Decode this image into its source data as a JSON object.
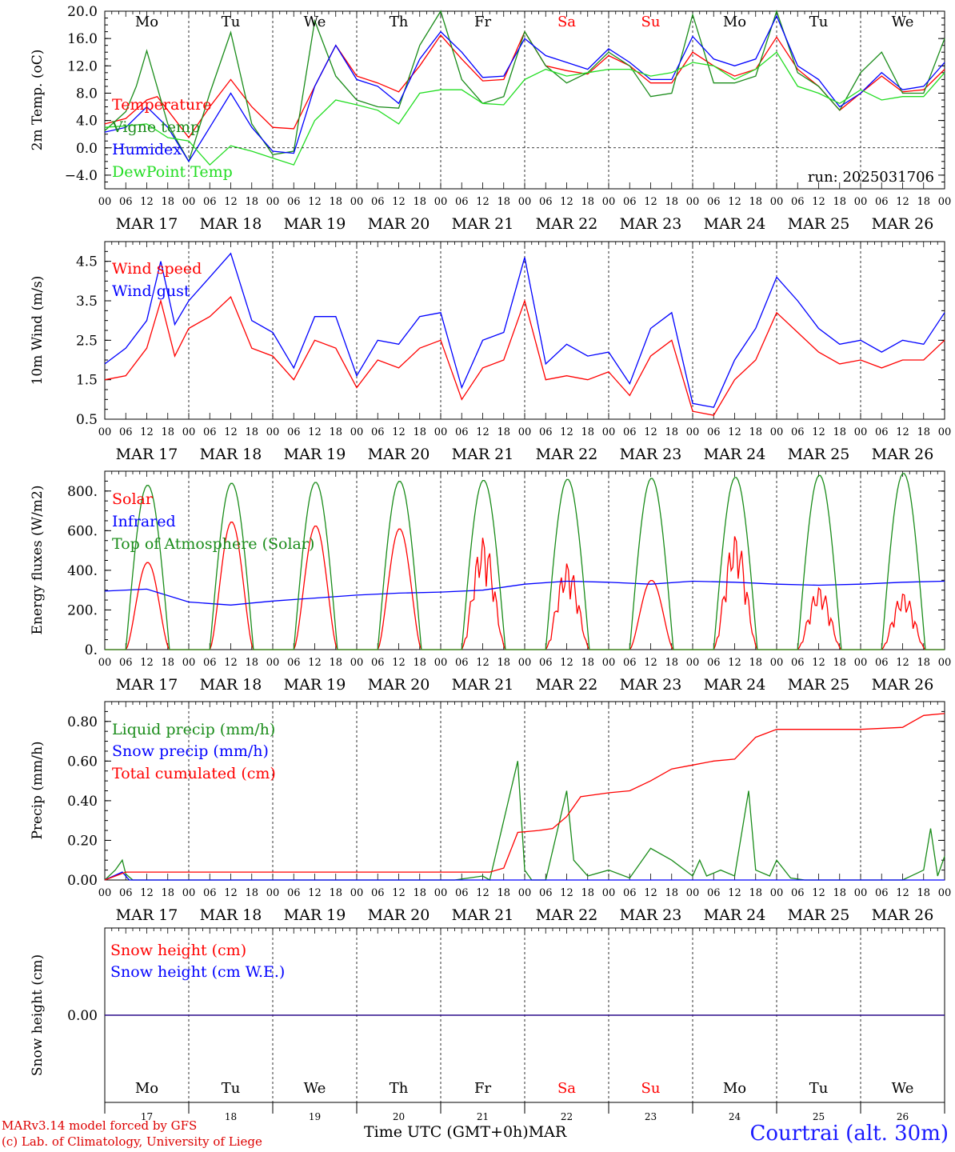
{
  "run_label": "run: 2025031706",
  "footer": {
    "model": "MARv3.14 model forced by GFS",
    "credit": "(c) Lab. of Climatology, University of Liege",
    "xlabel": "Time UTC (GMT+0h)",
    "month": "MAR",
    "station": "Courtrai (alt. 30m)"
  },
  "days": [
    {
      "abbr": "Mo",
      "date": "MAR 17",
      "num": "17",
      "weekend": false
    },
    {
      "abbr": "Tu",
      "date": "MAR 18",
      "num": "18",
      "weekend": false
    },
    {
      "abbr": "We",
      "date": "MAR 19",
      "num": "19",
      "weekend": false
    },
    {
      "abbr": "Th",
      "date": "MAR 20",
      "num": "20",
      "weekend": false
    },
    {
      "abbr": "Fr",
      "date": "MAR 21",
      "num": "21",
      "weekend": false
    },
    {
      "abbr": "Sa",
      "date": "MAR 22",
      "num": "22",
      "weekend": true
    },
    {
      "abbr": "Su",
      "date": "MAR 23",
      "num": "23",
      "weekend": true
    },
    {
      "abbr": "Mo",
      "date": "MAR 24",
      "num": "24",
      "weekend": false
    },
    {
      "abbr": "Tu",
      "date": "MAR 25",
      "num": "25",
      "weekend": false
    },
    {
      "abbr": "We",
      "date": "MAR 26",
      "num": "26",
      "weekend": false
    }
  ],
  "hour_ticks": [
    "00",
    "06",
    "12",
    "18"
  ],
  "colors": {
    "red": "#ff0000",
    "green": "#1a8c1a",
    "blue": "#0000ff",
    "lime": "#22dd22",
    "weekend": "#ff0000"
  },
  "chart_data": [
    {
      "id": "temperature",
      "type": "line",
      "ylabel": "2m Temp. (oC)",
      "ylim": [
        -6,
        20
      ],
      "yticks": [
        "20.0",
        "16.0",
        "12.0",
        "8.0",
        "4.0",
        "0.0",
        "−4.0"
      ],
      "ytick_values": [
        20,
        16,
        12,
        8,
        4,
        0,
        -4
      ],
      "x_unit": "hours since MAR 17 00 UTC",
      "series": [
        {
          "name": "Temperature",
          "color": "red",
          "x": [
            0,
            6,
            12,
            15,
            18,
            24,
            30,
            36,
            42,
            48,
            54,
            60,
            66,
            72,
            78,
            84,
            90,
            96,
            102,
            108,
            114,
            120,
            126,
            132,
            138,
            144,
            150,
            156,
            162,
            168,
            174,
            180,
            186,
            192,
            198,
            204,
            210,
            216,
            222,
            228,
            234,
            240
          ],
          "values": [
            3.5,
            4.3,
            7,
            7.5,
            5.5,
            1.5,
            6,
            10,
            6,
            3,
            2.8,
            9,
            15,
            10.5,
            9.5,
            8.2,
            12,
            16.5,
            13,
            9.8,
            10,
            17,
            12,
            11.3,
            10.8,
            13.5,
            12,
            9.5,
            9.5,
            14,
            12,
            10.5,
            11.5,
            16.2,
            11.5,
            9,
            5.5,
            8,
            10.5,
            8.2,
            8.5,
            11.5
          ]
        },
        {
          "name": "Vigne temp",
          "color": "green",
          "x": [
            0,
            6,
            9,
            12,
            18,
            24,
            30,
            36,
            42,
            48,
            54,
            60,
            66,
            72,
            78,
            84,
            90,
            96,
            102,
            108,
            114,
            120,
            126,
            132,
            138,
            144,
            150,
            156,
            162,
            168,
            174,
            180,
            186,
            192,
            198,
            204,
            210,
            216,
            222,
            228,
            234,
            240
          ],
          "values": [
            2.5,
            5.3,
            9,
            14.2,
            3.5,
            -2,
            8,
            16.9,
            3.5,
            -1,
            -0.5,
            18.6,
            10.5,
            7,
            6,
            5.8,
            15,
            20,
            10,
            6.5,
            7.5,
            17,
            12,
            9.5,
            11,
            14,
            12,
            7.5,
            8,
            19.5,
            9.5,
            9.5,
            10.5,
            20,
            11,
            9,
            5.5,
            11,
            14,
            8,
            8,
            16
          ]
        },
        {
          "name": "Humidex",
          "color": "blue",
          "x": [
            0,
            6,
            12,
            18,
            24,
            30,
            36,
            42,
            48,
            54,
            60,
            66,
            72,
            78,
            84,
            90,
            96,
            102,
            108,
            114,
            120,
            126,
            132,
            138,
            144,
            150,
            156,
            162,
            168,
            174,
            180,
            186,
            192,
            198,
            204,
            210,
            216,
            222,
            228,
            234,
            240
          ],
          "values": [
            2.3,
            3,
            6,
            3,
            -2,
            3,
            8,
            3,
            -0.5,
            -0.8,
            9,
            15,
            10,
            9,
            6.5,
            13,
            17,
            14,
            10.3,
            10.5,
            16,
            13.5,
            12.5,
            11.5,
            14.5,
            12.5,
            10,
            10,
            16.3,
            13,
            12,
            13,
            19.3,
            12,
            10,
            6,
            8,
            11,
            8.5,
            9,
            12.5
          ]
        },
        {
          "name": "DewPoint Temp",
          "color": "lime",
          "x": [
            0,
            6,
            12,
            18,
            24,
            30,
            36,
            42,
            48,
            54,
            60,
            66,
            72,
            78,
            84,
            90,
            96,
            102,
            108,
            114,
            120,
            126,
            132,
            138,
            144,
            150,
            156,
            162,
            168,
            174,
            180,
            186,
            192,
            198,
            204,
            210,
            216,
            222,
            228,
            234,
            240
          ],
          "values": [
            3,
            3.2,
            3.5,
            1.5,
            1,
            -2.5,
            0.3,
            -0.5,
            -1.5,
            -2.5,
            4,
            7,
            6.3,
            5.5,
            3.5,
            8,
            8.5,
            8.5,
            6.5,
            6.3,
            10,
            11.5,
            10.5,
            11,
            11.5,
            11.5,
            10.5,
            11,
            12.5,
            12,
            10,
            11.5,
            14,
            9,
            8,
            6.5,
            8.5,
            7,
            7.5,
            7.5,
            11
          ]
        }
      ]
    },
    {
      "id": "wind",
      "type": "line",
      "ylabel": "10m Wind (m/s)",
      "ylim": [
        0.5,
        5
      ],
      "yticks": [
        "4.5",
        "3.5",
        "2.5",
        "1.5",
        "0.5"
      ],
      "ytick_values": [
        4.5,
        3.5,
        2.5,
        1.5,
        0.5
      ],
      "series": [
        {
          "name": "Wind speed",
          "color": "red",
          "x": [
            0,
            6,
            12,
            16,
            20,
            24,
            30,
            36,
            42,
            48,
            54,
            60,
            66,
            72,
            78,
            84,
            90,
            96,
            102,
            108,
            114,
            120,
            126,
            132,
            138,
            144,
            150,
            156,
            162,
            168,
            174,
            180,
            186,
            192,
            198,
            204,
            210,
            216,
            222,
            228,
            234,
            240
          ],
          "values": [
            1.5,
            1.6,
            2.3,
            3.5,
            2.1,
            2.8,
            3.1,
            3.6,
            2.3,
            2.1,
            1.5,
            2.5,
            2.3,
            1.3,
            2,
            1.8,
            2.3,
            2.5,
            1.0,
            1.8,
            2.0,
            3.5,
            1.5,
            1.6,
            1.5,
            1.7,
            1.1,
            2.1,
            2.5,
            0.7,
            0.6,
            1.5,
            2.0,
            3.2,
            2.7,
            2.2,
            1.9,
            2.0,
            1.8,
            2.0,
            2.0,
            2.5
          ]
        },
        {
          "name": "Wind gust",
          "color": "blue",
          "x": [
            0,
            6,
            12,
            16,
            20,
            24,
            30,
            36,
            42,
            48,
            54,
            60,
            66,
            72,
            78,
            84,
            90,
            96,
            102,
            108,
            114,
            120,
            126,
            132,
            138,
            144,
            150,
            156,
            162,
            168,
            174,
            180,
            186,
            192,
            198,
            204,
            210,
            216,
            222,
            228,
            234,
            240
          ],
          "values": [
            1.9,
            2.3,
            3.0,
            4.5,
            2.9,
            3.5,
            4.1,
            4.7,
            3.0,
            2.7,
            1.8,
            3.1,
            3.1,
            1.6,
            2.5,
            2.4,
            3.1,
            3.2,
            1.3,
            2.5,
            2.7,
            4.6,
            1.9,
            2.4,
            2.1,
            2.2,
            1.4,
            2.8,
            3.2,
            0.9,
            0.8,
            2.0,
            2.8,
            4.1,
            3.5,
            2.8,
            2.4,
            2.5,
            2.2,
            2.5,
            2.4,
            3.2
          ]
        }
      ]
    },
    {
      "id": "fluxes",
      "type": "line",
      "ylabel": "Energy fluxes (W/m2)",
      "ylim": [
        0,
        900
      ],
      "yticks": [
        "800.",
        "600.",
        "400.",
        "200.",
        "0."
      ],
      "ytick_values": [
        800,
        600,
        400,
        200,
        0
      ],
      "series": [
        {
          "name": "Solar",
          "color": "red",
          "peaks": [
            440,
            645,
            625,
            610,
            570,
            440,
            350,
            585,
            320,
            290
          ]
        },
        {
          "name": "Infrared",
          "color": "blue",
          "x": [
            0,
            12,
            24,
            36,
            48,
            60,
            72,
            84,
            96,
            108,
            120,
            132,
            144,
            156,
            168,
            180,
            192,
            204,
            216,
            228,
            240
          ],
          "values": [
            295,
            305,
            240,
            225,
            245,
            260,
            275,
            285,
            290,
            300,
            330,
            345,
            340,
            330,
            345,
            340,
            330,
            325,
            330,
            340,
            345
          ]
        },
        {
          "name": "Top of Atmosphere (Solar)",
          "color": "green",
          "peaks": [
            830,
            840,
            845,
            850,
            855,
            860,
            865,
            870,
            880,
            890
          ]
        }
      ]
    },
    {
      "id": "precip",
      "type": "line",
      "ylabel": "Precip (mm/h)",
      "ylim": [
        0,
        0.9
      ],
      "yticks": [
        "0.80",
        "0.60",
        "0.40",
        "0.20",
        "0.00"
      ],
      "ytick_values": [
        0.8,
        0.6,
        0.4,
        0.2,
        0
      ],
      "series": [
        {
          "name": "Liquid precip (mm/h)",
          "color": "green",
          "x": [
            0,
            3,
            5,
            6,
            8,
            10,
            12,
            100,
            108,
            110,
            114,
            118,
            120,
            122,
            126,
            130,
            132,
            134,
            138,
            144,
            150,
            156,
            162,
            168,
            170,
            172,
            176,
            180,
            184,
            186,
            190,
            192,
            196,
            200,
            212,
            216,
            222,
            228,
            234,
            236,
            238,
            240
          ],
          "values": [
            0,
            0.05,
            0.1,
            0.03,
            0,
            0,
            0,
            0,
            0.02,
            0,
            0.3,
            0.6,
            0.05,
            0,
            0,
            0.3,
            0.45,
            0.1,
            0.02,
            0.05,
            0.01,
            0.16,
            0.1,
            0.02,
            0.1,
            0.02,
            0.05,
            0.02,
            0.45,
            0.05,
            0.02,
            0.1,
            0.01,
            0,
            0,
            0,
            0,
            0,
            0.05,
            0.26,
            0.02,
            0.12
          ]
        },
        {
          "name": "Snow precip (mm/h)",
          "color": "blue",
          "x": [
            0,
            5,
            7,
            240
          ],
          "values": [
            0,
            0.04,
            0,
            0
          ]
        },
        {
          "name": "Total cumulated (cm)",
          "color": "red",
          "x": [
            0,
            6,
            12,
            110,
            114,
            118,
            124,
            128,
            132,
            136,
            144,
            150,
            156,
            162,
            168,
            174,
            180,
            186,
            192,
            198,
            204,
            216,
            228,
            234,
            240
          ],
          "values": [
            0,
            0.04,
            0.04,
            0.04,
            0.06,
            0.24,
            0.25,
            0.26,
            0.32,
            0.42,
            0.44,
            0.45,
            0.5,
            0.56,
            0.58,
            0.6,
            0.61,
            0.72,
            0.76,
            0.76,
            0.76,
            0.76,
            0.77,
            0.83,
            0.84
          ]
        }
      ]
    },
    {
      "id": "snow",
      "type": "line",
      "ylabel": "Snow height (cm)",
      "ylim": [
        -1,
        1
      ],
      "yticks": [
        "0.00"
      ],
      "ytick_values": [
        0
      ],
      "series": [
        {
          "name": "Snow height (cm)",
          "color": "red",
          "x": [
            0,
            240
          ],
          "values": [
            0,
            0
          ]
        },
        {
          "name": "Snow height (cm W.E.)",
          "color": "blue",
          "x": [
            0,
            240
          ],
          "values": [
            0,
            0
          ]
        }
      ]
    }
  ]
}
